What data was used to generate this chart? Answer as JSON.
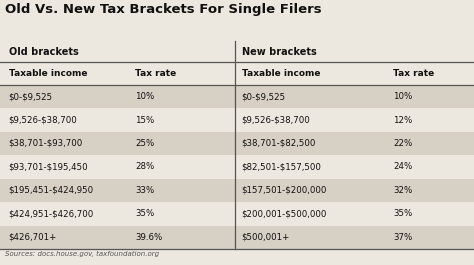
{
  "title": "Old Vs. New Tax Brackets For Single Filers",
  "old_header": "Old brackets",
  "new_header": "New brackets",
  "col_headers": [
    "Taxable income",
    "Tax rate",
    "Taxable income",
    "Tax rate"
  ],
  "old_rows": [
    [
      "\\$0-\\$9,525",
      "10%"
    ],
    [
      "\\$9,526-\\$38,700",
      "15%"
    ],
    [
      "\\$38,701-\\$93,700",
      "25%"
    ],
    [
      "\\$93,701-\\$195,450",
      "28%"
    ],
    [
      "\\$195,451-\\$424,950",
      "33%"
    ],
    [
      "\\$424,951-\\$426,700",
      "35%"
    ],
    [
      "\\$426,701+",
      "39.6%"
    ]
  ],
  "new_rows": [
    [
      "\\$0-\\$9,525",
      "10%"
    ],
    [
      "\\$9,526-\\$38,700",
      "12%"
    ],
    [
      "\\$38,701-\\$82,500",
      "22%"
    ],
    [
      "\\$82,501-\\$157,500",
      "24%"
    ],
    [
      "\\$157,501-\\$200,000",
      "32%"
    ],
    [
      "\\$200,001-\\$500,000",
      "35%"
    ],
    [
      "\\$500,001+",
      "37%"
    ]
  ],
  "bg_color": "#ede8df",
  "row_alt_color": "#d6d0c5",
  "divider_color": "#555555",
  "source_text": "Sources: docs.house.gov, taxfoundation.org",
  "title_fontsize": 9.5,
  "section_fontsize": 7.0,
  "col_header_fontsize": 6.5,
  "data_fontsize": 6.2
}
